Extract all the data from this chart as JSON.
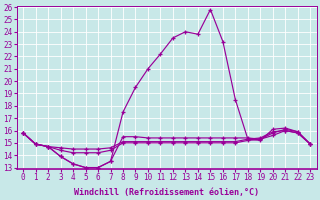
{
  "xlabel": "Windchill (Refroidissement éolien,°C)",
  "bg_color": "#c8e8e8",
  "line_color": "#990099",
  "x_hours": [
    0,
    1,
    2,
    3,
    4,
    5,
    6,
    7,
    8,
    9,
    10,
    11,
    12,
    13,
    14,
    15,
    16,
    17,
    18,
    19,
    20,
    21,
    22,
    23
  ],
  "line1": [
    15.8,
    14.9,
    14.7,
    13.9,
    13.3,
    13.0,
    13.0,
    13.5,
    17.5,
    19.5,
    21.0,
    22.2,
    23.5,
    24.0,
    23.8,
    25.8,
    23.2,
    18.5,
    15.3,
    15.2,
    16.1,
    16.2,
    15.9,
    14.9
  ],
  "line2": [
    15.8,
    14.9,
    14.7,
    13.9,
    13.3,
    13.0,
    13.0,
    13.5,
    15.5,
    15.5,
    15.4,
    15.4,
    15.4,
    15.4,
    15.4,
    15.4,
    15.4,
    15.4,
    15.4,
    15.3,
    15.6,
    16.0,
    15.8,
    14.9
  ],
  "line3": [
    15.8,
    14.9,
    14.7,
    14.4,
    14.2,
    14.2,
    14.2,
    14.4,
    15.0,
    15.0,
    15.0,
    15.0,
    15.0,
    15.0,
    15.0,
    15.0,
    15.0,
    15.0,
    15.2,
    15.3,
    15.8,
    16.1,
    15.9,
    14.9
  ],
  "line4": [
    15.8,
    14.9,
    14.7,
    14.6,
    14.5,
    14.5,
    14.5,
    14.6,
    15.1,
    15.1,
    15.1,
    15.1,
    15.1,
    15.1,
    15.1,
    15.1,
    15.1,
    15.1,
    15.3,
    15.4,
    15.9,
    16.0,
    15.8,
    14.9
  ],
  "ylim": [
    13,
    26
  ],
  "yticks": [
    13,
    14,
    15,
    16,
    17,
    18,
    19,
    20,
    21,
    22,
    23,
    24,
    25,
    26
  ],
  "xlim": [
    -0.5,
    23.5
  ],
  "grid_color": "#ffffff",
  "xlabel_fontsize": 6,
  "tick_fontsize": 5.5
}
